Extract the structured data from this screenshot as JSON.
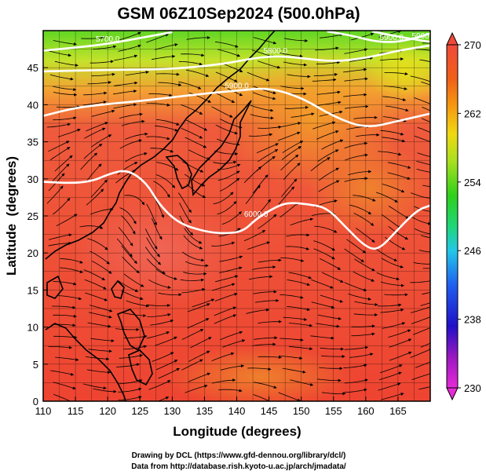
{
  "chart_data": {
    "type": "heatmap",
    "title": "GSM 06Z10Sep2024 (500.0hPa)",
    "xlabel": "Longitude (degrees)",
    "ylabel": "Latitude  (degrees)",
    "xlim": [
      110,
      170
    ],
    "ylim": [
      0,
      50
    ],
    "xticks": [
      "110",
      "115",
      "120",
      "125",
      "130",
      "135",
      "140",
      "145",
      "150",
      "155",
      "160",
      "165"
    ],
    "yticks": [
      "0",
      "5",
      "10",
      "15",
      "20",
      "25",
      "30",
      "35",
      "40",
      "45"
    ],
    "grid": true,
    "colorbar": {
      "position": "right",
      "min": 230,
      "max": 270,
      "tick_labels": [
        "230",
        "238",
        "246",
        "254",
        "262",
        "270"
      ],
      "colors": [
        "#e62ad6",
        "#9a18c0",
        "#2010c8",
        "#1f5ff0",
        "#22c8e8",
        "#1fd67a",
        "#2ed01a",
        "#a8e01e",
        "#f0d812",
        "#f59a10",
        "#f06018",
        "#f04a3a"
      ]
    },
    "contours": [
      {
        "label": "5700.0",
        "points": [
          [
            110,
            47.3
          ],
          [
            115,
            47.7
          ],
          [
            120,
            48.2
          ],
          [
            125,
            49.0
          ],
          [
            130,
            49.8
          ]
        ]
      },
      {
        "label": "5800.0",
        "points": [
          [
            110,
            44.5
          ],
          [
            120,
            44.7
          ],
          [
            130,
            44.8
          ],
          [
            138,
            45.5
          ],
          [
            142,
            46.2
          ],
          [
            146,
            46.6
          ],
          [
            150,
            46.3
          ],
          [
            155,
            45.8
          ],
          [
            160,
            46.3
          ],
          [
            165,
            47.3
          ],
          [
            170,
            48.0
          ]
        ]
      },
      {
        "label": "5900.0",
        "points": [
          [
            110,
            38.5
          ],
          [
            115,
            39.6
          ],
          [
            120,
            40.1
          ],
          [
            125,
            40.5
          ],
          [
            130,
            41.0
          ],
          [
            135,
            41.5
          ],
          [
            140,
            41.9
          ],
          [
            145,
            42.3
          ],
          [
            150,
            41.0
          ],
          [
            155,
            38.4
          ],
          [
            160,
            36.8
          ],
          [
            165,
            37.8
          ],
          [
            170,
            38.8
          ]
        ]
      },
      {
        "label": "5900.0",
        "points": [
          [
            154,
            49.9
          ],
          [
            158,
            49.3
          ],
          [
            161,
            48.6
          ],
          [
            164,
            48.4
          ],
          [
            167,
            48.8
          ],
          [
            170,
            49.6
          ]
        ]
      },
      {
        "label": "5900.0",
        "points": [
          [
            161,
            49.9
          ],
          [
            165,
            49.2
          ],
          [
            169,
            48.6
          ],
          [
            170,
            48.5
          ]
        ]
      },
      {
        "label": "6000.0",
        "points": [
          [
            110,
            29.6
          ],
          [
            115,
            29.4
          ],
          [
            118,
            29.8
          ],
          [
            120,
            30.6
          ],
          [
            123,
            31.3
          ],
          [
            126,
            29.5
          ],
          [
            128,
            26.5
          ],
          [
            131,
            24.0
          ],
          [
            135,
            22.9
          ],
          [
            138,
            22.6
          ],
          [
            141,
            22.9
          ],
          [
            143,
            24.6
          ],
          [
            146,
            26.2
          ],
          [
            148,
            26.8
          ],
          [
            151,
            26.6
          ],
          [
            154,
            26.1
          ],
          [
            157,
            23.4
          ],
          [
            160,
            20.8
          ],
          [
            162,
            20.4
          ],
          [
            165,
            23.2
          ],
          [
            168,
            25.8
          ],
          [
            170,
            26.4
          ]
        ]
      }
    ],
    "annotations": [
      "Drawing by DCL (https://www.gfd-dennou.org/library/dcl/)",
      "Data from http://database.rish.kyoto-u.ac.jp/arch/jmadata/"
    ]
  }
}
